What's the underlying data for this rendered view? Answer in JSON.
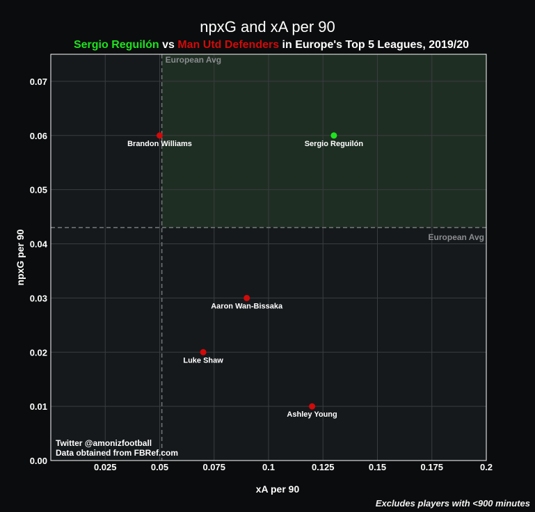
{
  "title": "npxG and xA per 90",
  "subtitle": {
    "player": "Sergio Reguilón",
    "vs": " vs ",
    "group": "Man Utd Defenders",
    "rest": " in Europe's Top 5 Leagues, 2019/20"
  },
  "credits": {
    "line1": "Twitter @amonizfootball",
    "line2": "Data obtained from FBRef.com"
  },
  "footnote": "Excludes players with <900 minutes",
  "colors": {
    "highlight": "#1ee31e",
    "comparison": "#d10a0a",
    "quadrant_fill": "#1f2e23",
    "plot_bg": "#16191c"
  },
  "chart_data": {
    "type": "scatter",
    "xlabel": "xA per 90",
    "ylabel": "npxG per 90",
    "xlim": [
      0,
      0.2
    ],
    "ylim": [
      0,
      0.075
    ],
    "xticks": [
      {
        "value": 0.025,
        "label": "0.025"
      },
      {
        "value": 0.05,
        "label": "0.05"
      },
      {
        "value": 0.075,
        "label": "0.075"
      },
      {
        "value": 0.1,
        "label": "0.1"
      },
      {
        "value": 0.125,
        "label": "0.125"
      },
      {
        "value": 0.15,
        "label": "0.15"
      },
      {
        "value": 0.175,
        "label": "0.175"
      },
      {
        "value": 0.2,
        "label": "0.2"
      }
    ],
    "yticks": [
      {
        "value": 0.0,
        "label": "0.00"
      },
      {
        "value": 0.01,
        "label": "0.01"
      },
      {
        "value": 0.02,
        "label": "0.02"
      },
      {
        "value": 0.03,
        "label": "0.03"
      },
      {
        "value": 0.04,
        "label": "0.04"
      },
      {
        "value": 0.05,
        "label": "0.05"
      },
      {
        "value": 0.06,
        "label": "0.06"
      },
      {
        "value": 0.07,
        "label": "0.07"
      }
    ],
    "grid": true,
    "avg_x": 0.051,
    "avg_y": 0.043,
    "avg_label": "European Avg",
    "points": [
      {
        "name": "Sergio Reguilón",
        "x": 0.13,
        "y": 0.06,
        "group": "highlight"
      },
      {
        "name": "Brandon Williams",
        "x": 0.05,
        "y": 0.06,
        "group": "comparison"
      },
      {
        "name": "Aaron Wan-Bissaka",
        "x": 0.09,
        "y": 0.03,
        "group": "comparison"
      },
      {
        "name": "Luke Shaw",
        "x": 0.07,
        "y": 0.02,
        "group": "comparison"
      },
      {
        "name": "Ashley Young",
        "x": 0.12,
        "y": 0.01,
        "group": "comparison"
      }
    ]
  }
}
